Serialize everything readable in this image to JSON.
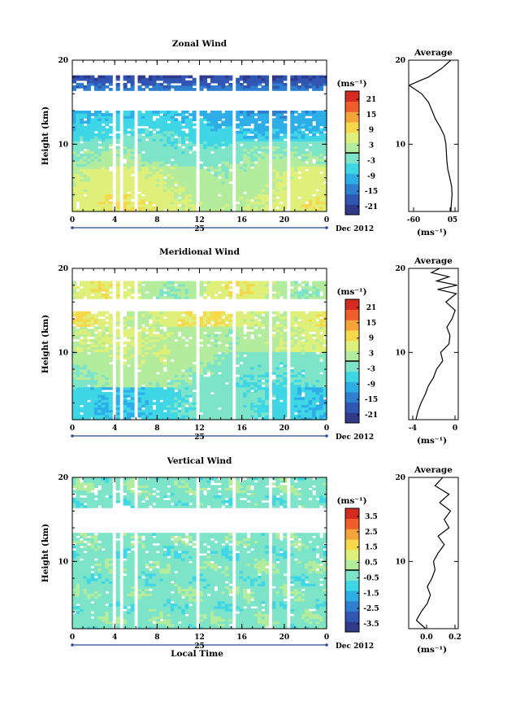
{
  "colors": {
    "colormap": [
      "#313a8a",
      "#3055b3",
      "#2f7fd0",
      "#2eaee8",
      "#3fd6e6",
      "#7de4c8",
      "#b4ec9e",
      "#dff07a",
      "#f5d84c",
      "#f5a33a",
      "#ee5f2b",
      "#d42b20"
    ]
  },
  "common": {
    "time_ticks": [
      "0",
      "4",
      "8",
      "12",
      "16",
      "20",
      "0"
    ],
    "day_label": "25",
    "date_label": "Dec 2012",
    "height_ticks": [
      "10",
      "20"
    ],
    "ylabel": "Height (km)",
    "xlabel": "Local Time",
    "units": "(ms⁻¹)",
    "avg_title": "Average"
  },
  "chart_data": [
    {
      "type": "heatmap",
      "title": "Zonal Wind",
      "xlabel": "",
      "ylabel": "Height (km)",
      "x_range_hours": [
        0,
        24
      ],
      "ylim": [
        2,
        20
      ],
      "colorbar": {
        "ticks": [
          "21",
          "15",
          "9",
          "3",
          "-3",
          "-9",
          "-15",
          "-21"
        ],
        "range": [
          -24,
          24
        ]
      },
      "profile": {
        "title": "Average",
        "xticks": [
          "-60",
          "0",
          "5"
        ],
        "xlim": [
          -12,
          8
        ],
        "xunits": "(ms⁻¹)",
        "heights": [
          2,
          3,
          4,
          5,
          6,
          7,
          8,
          9,
          10,
          11,
          12,
          13,
          14,
          15,
          16,
          17,
          17.5,
          18,
          19,
          20
        ],
        "values": [
          5,
          5.2,
          5.5,
          5.3,
          4.6,
          3.8,
          3.4,
          3.2,
          3.0,
          2.4,
          0.8,
          -1.2,
          -2.6,
          -4.0,
          -6.8,
          -11.8,
          -8,
          -4,
          1.2,
          5
        ]
      }
    },
    {
      "type": "heatmap",
      "title": "Meridional Wind",
      "xlabel": "",
      "ylabel": "Height (km)",
      "x_range_hours": [
        0,
        24
      ],
      "ylim": [
        2,
        20
      ],
      "colorbar": {
        "ticks": [
          "21",
          "15",
          "9",
          "3",
          "-3",
          "-9",
          "-15",
          "-21"
        ],
        "range": [
          -24,
          24
        ]
      },
      "profile": {
        "title": "Average",
        "xticks": [
          "-4",
          "0"
        ],
        "xlim": [
          -4.5,
          0.3
        ],
        "xunits": "(ms⁻¹)",
        "heights": [
          2,
          3,
          4,
          5,
          6,
          7,
          8,
          9,
          10,
          11,
          12,
          13,
          14,
          15,
          16,
          17,
          17.5,
          18,
          18.5,
          19,
          19.5,
          20
        ],
        "values": [
          -3.8,
          -3.6,
          -3.3,
          -2.9,
          -2.6,
          -2.1,
          -1.8,
          -1.2,
          -1.4,
          -0.6,
          -0.5,
          -0.8,
          -0.3,
          0.0,
          -0.9,
          0.1,
          -1.7,
          0.2,
          -1.8,
          -0.6,
          -2.3,
          -1.5
        ]
      }
    },
    {
      "type": "heatmap",
      "title": "Vertical Wind",
      "xlabel": "Local Time",
      "ylabel": "Height (km)",
      "x_range_hours": [
        0,
        24
      ],
      "ylim": [
        2,
        20
      ],
      "colorbar": {
        "ticks": [
          "3.5",
          "2.5",
          "1.5",
          "0.5",
          "-0.5",
          "-1.5",
          "-2.5",
          "-3.5"
        ],
        "range": [
          -4,
          4
        ]
      },
      "profile": {
        "title": "Average",
        "xticks": [
          "0.0",
          "0.2"
        ],
        "xlim": [
          -0.1,
          0.22
        ],
        "xunits": "(ms⁻¹)",
        "heights": [
          2,
          3,
          4,
          5,
          6,
          7,
          8,
          9,
          10,
          11,
          12,
          13,
          14,
          15,
          16,
          17,
          18,
          19,
          20
        ],
        "values": [
          0.01,
          -0.05,
          -0.02,
          0.02,
          0.04,
          0.02,
          0.05,
          0.07,
          0.06,
          0.09,
          0.13,
          0.09,
          0.16,
          0.13,
          0.17,
          0.1,
          0.16,
          0.07,
          0.12
        ]
      }
    }
  ]
}
